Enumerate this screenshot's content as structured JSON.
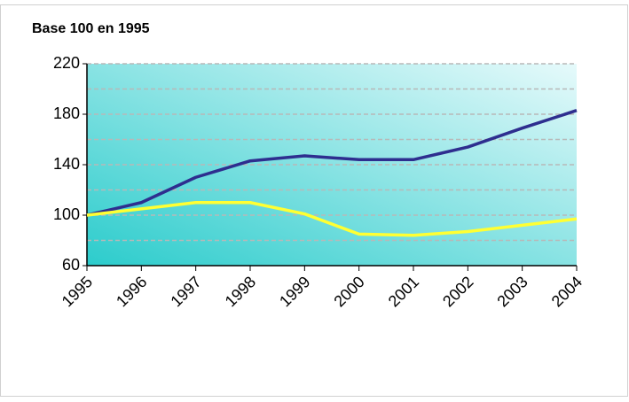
{
  "chart_data": {
    "type": "line",
    "title": "Base 100 en 1995",
    "categories": [
      "1995",
      "1996",
      "1997",
      "1998",
      "1999",
      "2000",
      "2001",
      "2002",
      "2003",
      "2004"
    ],
    "series": [
      {
        "color": "#2e2e8f",
        "values": [
          100,
          110,
          130,
          143,
          147,
          144,
          144,
          154,
          169,
          183
        ]
      },
      {
        "color": "#ffff33",
        "values": [
          100,
          105,
          110,
          110,
          101,
          85,
          84,
          87,
          92,
          97
        ]
      }
    ],
    "ylim": [
      60,
      220
    ],
    "yticks": [
      60,
      100,
      140,
      180,
      220
    ],
    "minor_yticks": [
      80,
      120,
      160,
      200
    ],
    "grid": true
  }
}
